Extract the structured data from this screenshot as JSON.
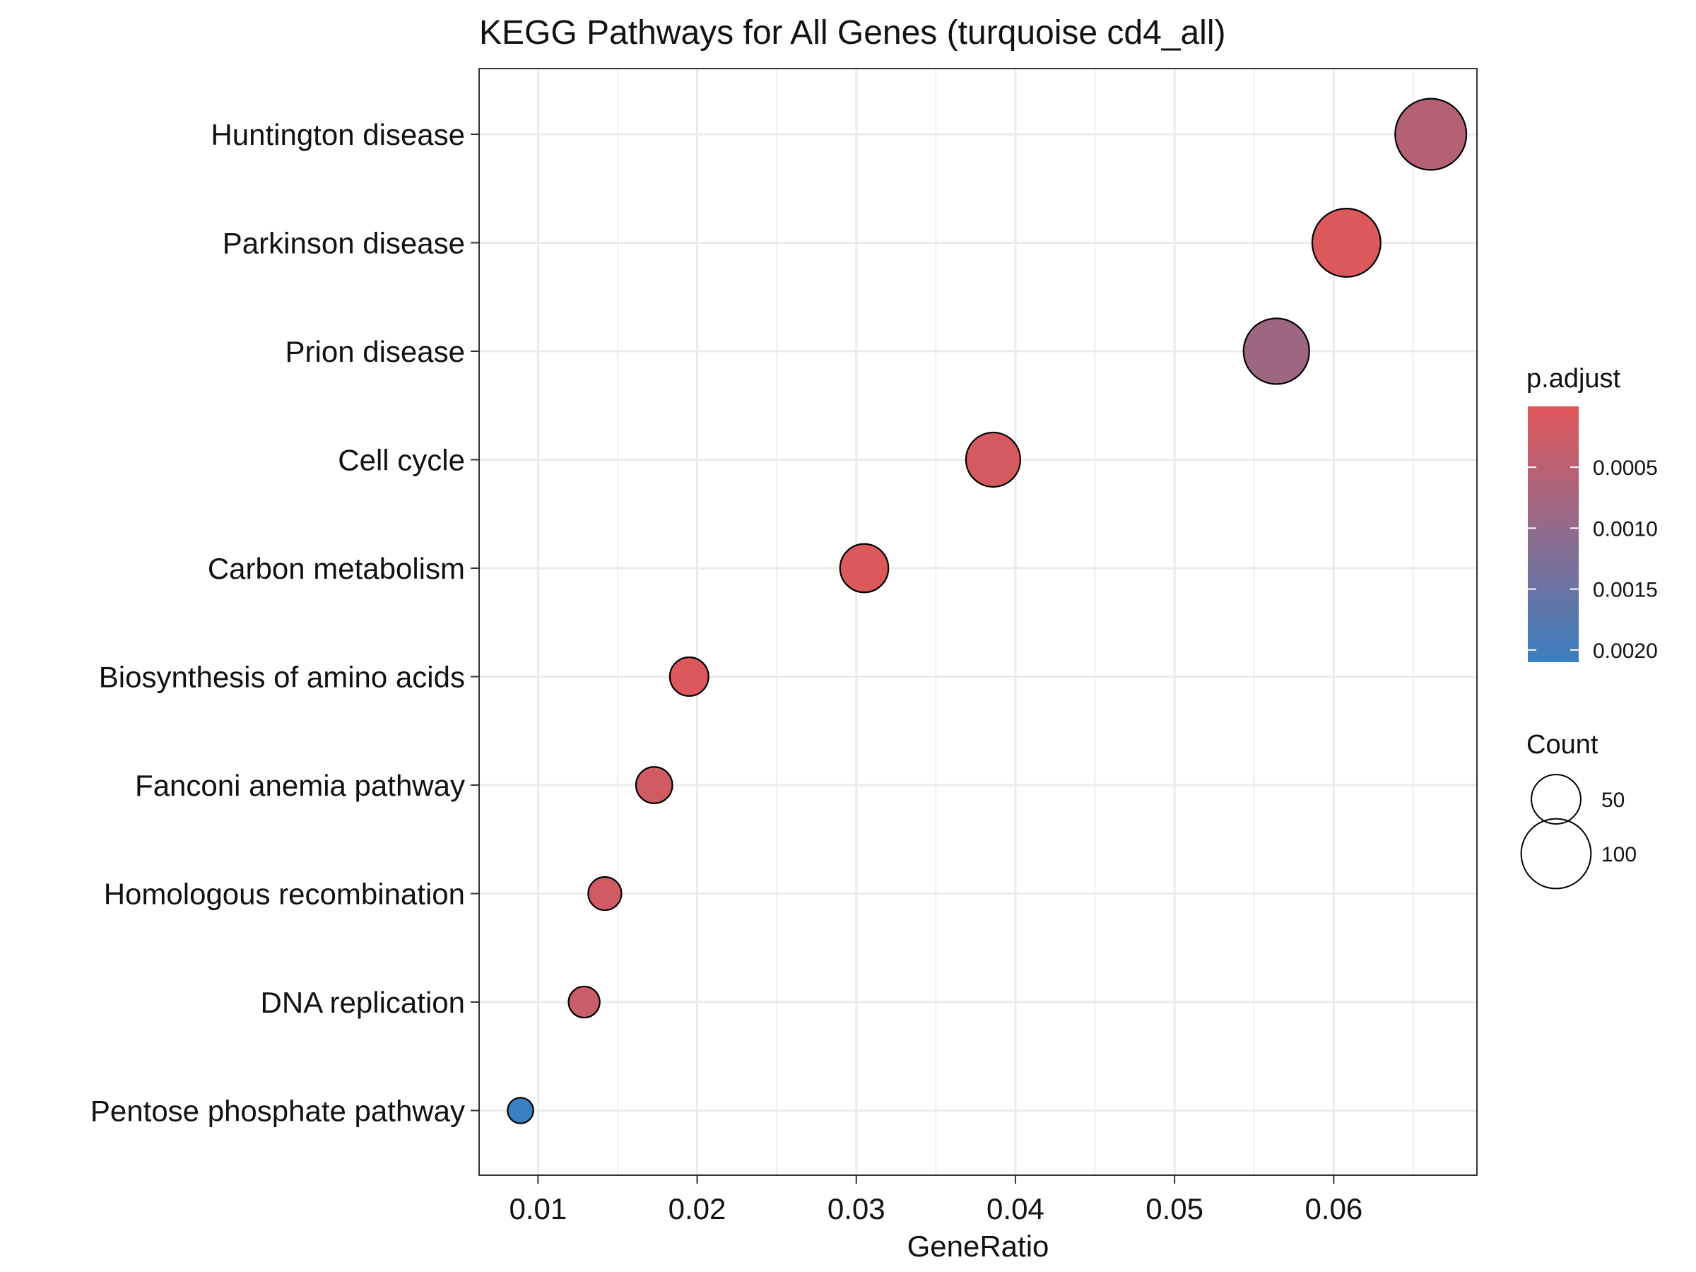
{
  "chart_data": {
    "type": "scatter",
    "title": "KEGG Pathways for All Genes (turquoise cd4_all)",
    "xlabel": "GeneRatio",
    "ylabel": "",
    "xlim": [
      0.0063,
      0.069
    ],
    "xticks": [
      0.01,
      0.02,
      0.03,
      0.04,
      0.05,
      0.06
    ],
    "xtick_labels": [
      "0.01",
      "0.02",
      "0.03",
      "0.04",
      "0.05",
      "0.06"
    ],
    "grid": true,
    "categories": [
      "Huntington disease",
      "Parkinson disease",
      "Prion disease",
      "Cell cycle",
      "Carbon metabolism",
      "Biosynthesis of amino acids",
      "Fanconi anemia pathway",
      "Homologous recombination",
      "DNA replication",
      "Pentose phosphate pathway"
    ],
    "points": [
      {
        "category": "Huntington disease",
        "gene_ratio": 0.0661,
        "count": 115,
        "p_adjust": 0.00055
      },
      {
        "category": "Parkinson disease",
        "gene_ratio": 0.0608,
        "count": 106,
        "p_adjust": 5e-05
      },
      {
        "category": "Prion disease",
        "gene_ratio": 0.0564,
        "count": 98,
        "p_adjust": 0.00085
      },
      {
        "category": "Cell cycle",
        "gene_ratio": 0.0386,
        "count": 67,
        "p_adjust": 0.00015
      },
      {
        "category": "Carbon metabolism",
        "gene_ratio": 0.0305,
        "count": 53,
        "p_adjust": 5e-05
      },
      {
        "category": "Biosynthesis of amino acids",
        "gene_ratio": 0.0195,
        "count": 34,
        "p_adjust": 5e-05
      },
      {
        "category": "Fanconi anemia pathway",
        "gene_ratio": 0.0173,
        "count": 30,
        "p_adjust": 0.0002
      },
      {
        "category": "Homologous recombination",
        "gene_ratio": 0.0142,
        "count": 25,
        "p_adjust": 0.0002
      },
      {
        "category": "DNA replication",
        "gene_ratio": 0.0129,
        "count": 22,
        "p_adjust": 0.0003
      },
      {
        "category": "Pentose phosphate pathway",
        "gene_ratio": 0.0089,
        "count": 15,
        "p_adjust": 0.0021
      }
    ],
    "color_legend": {
      "title": "p.adjust",
      "range": [
        0.0,
        0.0021
      ],
      "low_color": "#E15759",
      "high_color": "#3A7FBF",
      "tick_values": [
        0.0005,
        0.001,
        0.0015,
        0.002
      ],
      "tick_labels": [
        "0.0005",
        "0.0010",
        "0.0015",
        "0.0020"
      ]
    },
    "size_legend": {
      "title": "Count",
      "values": [
        50,
        100
      ],
      "labels": [
        "50",
        "100"
      ]
    },
    "legend_position": "right"
  }
}
